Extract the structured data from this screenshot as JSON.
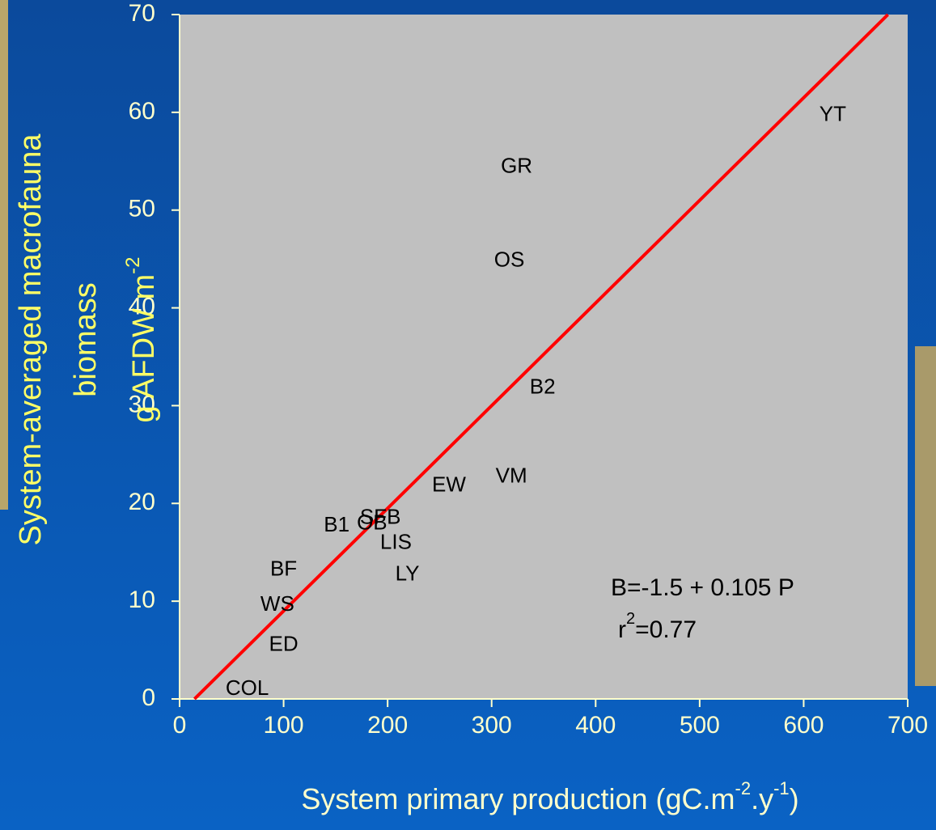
{
  "chart_data": {
    "type": "scatter",
    "labels": [
      "YT",
      "GR",
      "OS",
      "B2",
      "VM",
      "EW",
      "B1",
      "SFB",
      "OB",
      "LIS",
      "LY",
      "BF",
      "WS",
      "ED",
      "COL"
    ],
    "x": [
      628,
      324,
      317,
      349,
      319,
      259,
      151,
      193,
      185,
      208,
      219,
      100,
      94,
      100,
      65
    ],
    "y": [
      59.7,
      54.4,
      44.8,
      31.8,
      22.7,
      21.8,
      17.7,
      18.5,
      17.9,
      15.9,
      12.7,
      13.2,
      9.6,
      5.5,
      1.0
    ],
    "color": "#000000",
    "fit": {
      "x": [
        14.3,
        681
      ],
      "y": [
        0,
        70
      ],
      "color": "#ff0000"
    },
    "equation": "B=-1.5 + 0.105 P",
    "r2": {
      "base": "r",
      "sup": "2",
      "rest": "=0.77"
    },
    "xlim": [
      0,
      700
    ],
    "ylim": [
      0,
      70
    ],
    "xticks": [
      0,
      100,
      200,
      300,
      400,
      500,
      600,
      700
    ],
    "yticks": [
      0,
      10,
      20,
      30,
      40,
      50,
      60,
      70
    ],
    "y_label": [
      "System-averaged macrofauna",
      "biomass",
      {
        "text": "g AFDW m",
        "sup": "-2"
      }
    ],
    "x_label": {
      "parts": [
        "System primary production (gC.m",
        "-2",
        ".y",
        "-1",
        ")"
      ]
    }
  }
}
